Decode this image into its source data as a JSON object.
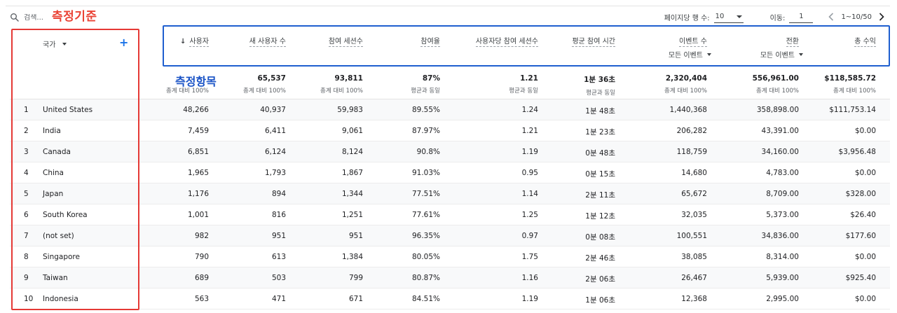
{
  "search": {
    "placeholder": "검색..."
  },
  "annotations": {
    "dimension": "측정기준",
    "metrics": "측정항목"
  },
  "pager": {
    "rows_per_page_label": "페이지당 행 수:",
    "rows_per_page_value": "10",
    "goto_label": "이동:",
    "goto_value": "1",
    "range": "1~10/50"
  },
  "dimension": {
    "label": "국가"
  },
  "columns": [
    {
      "key": "users",
      "label": "사용자",
      "sorted": true,
      "sub": null
    },
    {
      "key": "new_users",
      "label": "새 사용자 수",
      "sub": null
    },
    {
      "key": "engaged_sessions",
      "label": "참여 세션수",
      "sub": null
    },
    {
      "key": "engagement_rate",
      "label": "참여율",
      "sub": null
    },
    {
      "key": "engaged_per_user",
      "label": "사용자당 참여 세션수",
      "sub": null
    },
    {
      "key": "avg_engagement",
      "label": "평균 참여 시간",
      "sub": null
    },
    {
      "key": "events",
      "label": "이벤트 수",
      "sub": "모든 이벤트"
    },
    {
      "key": "conversions",
      "label": "전환",
      "sub": "모든 이벤트"
    },
    {
      "key": "revenue",
      "label": "총 수익",
      "sub": null
    }
  ],
  "totals": [
    {
      "value": "",
      "sub": "총계 대비 100%"
    },
    {
      "value": "65,537",
      "sub": "총계 대비 100%"
    },
    {
      "value": "93,811",
      "sub": "총계 대비 100%"
    },
    {
      "value": "87%",
      "sub": "평균과 동일"
    },
    {
      "value": "1.21",
      "sub": "평균과 동일"
    },
    {
      "value": "1분 36초",
      "sub": "평균과 동일"
    },
    {
      "value": "2,320,404",
      "sub": "총계 대비 100%"
    },
    {
      "value": "556,961.00",
      "sub": "총계 대비 100%"
    },
    {
      "value": "$118,585.72",
      "sub": "총계 대비 100%"
    }
  ],
  "rows": [
    {
      "idx": "1",
      "country": "United States",
      "values": [
        "48,266",
        "40,937",
        "59,983",
        "89.55%",
        "1.24",
        "1분 48초",
        "1,440,368",
        "358,898.00",
        "$111,753.14"
      ]
    },
    {
      "idx": "2",
      "country": "India",
      "values": [
        "7,459",
        "6,411",
        "9,061",
        "87.97%",
        "1.21",
        "1분 23초",
        "206,282",
        "43,391.00",
        "$0.00"
      ]
    },
    {
      "idx": "3",
      "country": "Canada",
      "values": [
        "6,851",
        "6,124",
        "8,124",
        "90.8%",
        "1.19",
        "0분 48초",
        "118,759",
        "34,160.00",
        "$3,956.48"
      ]
    },
    {
      "idx": "4",
      "country": "China",
      "values": [
        "1,965",
        "1,793",
        "1,867",
        "91.03%",
        "0.95",
        "0분 15초",
        "14,680",
        "4,783.00",
        "$0.00"
      ]
    },
    {
      "idx": "5",
      "country": "Japan",
      "values": [
        "1,176",
        "894",
        "1,344",
        "77.51%",
        "1.14",
        "2분 11초",
        "65,672",
        "8,709.00",
        "$328.00"
      ]
    },
    {
      "idx": "6",
      "country": "South Korea",
      "values": [
        "1,001",
        "816",
        "1,251",
        "77.61%",
        "1.25",
        "1분 12초",
        "32,035",
        "5,373.00",
        "$26.40"
      ]
    },
    {
      "idx": "7",
      "country": "(not set)",
      "values": [
        "982",
        "951",
        "951",
        "96.35%",
        "0.97",
        "0분 08초",
        "100,551",
        "34,836.00",
        "$177.60"
      ]
    },
    {
      "idx": "8",
      "country": "Singapore",
      "values": [
        "790",
        "613",
        "1,384",
        "80.05%",
        "1.75",
        "2분 46초",
        "38,085",
        "8,314.00",
        "$0.00"
      ]
    },
    {
      "idx": "9",
      "country": "Taiwan",
      "values": [
        "689",
        "503",
        "799",
        "80.87%",
        "1.16",
        "2분 06초",
        "26,467",
        "5,939.00",
        "$925.40"
      ]
    },
    {
      "idx": "10",
      "country": "Indonesia",
      "values": [
        "563",
        "471",
        "671",
        "84.51%",
        "1.19",
        "1분 06초",
        "12,368",
        "2,995.00",
        "$0.00"
      ]
    }
  ]
}
